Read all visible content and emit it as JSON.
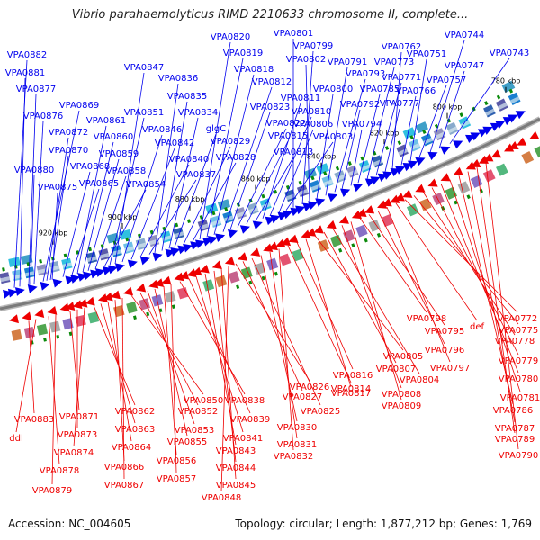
{
  "title": "Vibrio parahaemolyticus RIMD 2210633 chromosome II, complete...",
  "footer": {
    "accession": "Accession: NC_004605",
    "summary": "Topology: circular; Length: 1,877,212 bp; Genes: 1,769"
  },
  "colors": {
    "forward": "#0000ee",
    "reverse": "#ee0000",
    "backbone": "#7a7a7a",
    "tick": "#0a8a0a",
    "text": "#000000"
  },
  "scale_labels": [
    "780 kbp",
    "800 kbp",
    "820 kbp",
    "840 kbp",
    "860 kbp",
    "880 kbp",
    "900 kbp",
    "920 kbp"
  ],
  "forward_genes": [
    "VPA0882",
    "VPA0881",
    "VPA0877",
    "VPA0876",
    "VPA0869",
    "VPA0872",
    "VPA0870",
    "VPA0880",
    "VPA0875",
    "VPA0868",
    "VPA0865",
    "VPA0861",
    "VPA0860",
    "VPA0859",
    "VPA0858",
    "VPA0854",
    "VPA0851",
    "VPA0847",
    "VPA0846",
    "VPA0842",
    "VPA0840",
    "VPA0837",
    "VPA0836",
    "VPA0835",
    "VPA0834",
    "glgC",
    "VPA0829",
    "VPA0828",
    "VPA0820",
    "VPA0819",
    "VPA0818",
    "VPA0812",
    "VPA0823",
    "VPA0822",
    "VPA0815",
    "VPA0813",
    "VPA0811",
    "VPA0810",
    "VPA0806",
    "VPA0803",
    "VPA0801",
    "VPA0799",
    "VPA0802",
    "VPA0800",
    "VPA0791",
    "VPA0793",
    "VPA0792",
    "VPA0794",
    "VPA0785",
    "VPA0773",
    "VPA0771",
    "VPA0777",
    "VPA0762",
    "VPA0766",
    "VPA0751",
    "VPA0757",
    "VPA0744",
    "VPA0747",
    "VPA0743"
  ],
  "reverse_genes": [
    "VPA0883",
    "ddl",
    "VPA0878",
    "VPA0879",
    "VPA0871",
    "VPA0873",
    "VPA0874",
    "VPA0862",
    "VPA0863",
    "VPA0864",
    "VPA0866",
    "VPA0867",
    "VPA0850",
    "VPA0852",
    "VPA0853",
    "VPA0855",
    "VPA0856",
    "VPA0857",
    "VPA0838",
    "VPA0839",
    "VPA0841",
    "VPA0843",
    "VPA0844",
    "VPA0845",
    "VPA0848",
    "VPA0826",
    "VPA0827",
    "VPA0825",
    "VPA0830",
    "VPA0831",
    "VPA0832",
    "VPA0814",
    "VPA0816",
    "VPA0817",
    "VPA0805",
    "VPA0807",
    "VPA0804",
    "VPA0808",
    "VPA0809",
    "VPA0798",
    "VPA0795",
    "VPA0796",
    "VPA0797",
    "def",
    "VPA0772",
    "VPA0775",
    "VPA0778",
    "VPA0779",
    "VPA0780",
    "VPA0781",
    "VPA0786",
    "VPA0787",
    "VPA0789",
    "VPA0790"
  ]
}
